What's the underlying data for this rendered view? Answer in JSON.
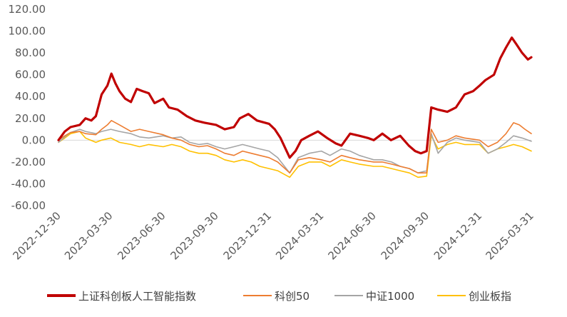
{
  "chart_data": {
    "type": "line",
    "title": "",
    "xlabel": "",
    "ylabel": "",
    "ylim": [
      -60,
      120
    ],
    "y_ticks": [
      "120.00",
      "100.00",
      "80.00",
      "60.00",
      "40.00",
      "20.00",
      "0.00",
      "-20.00",
      "-40.00",
      "-60.00"
    ],
    "x_ticks": [
      "2022-12-30",
      "2023-03-30",
      "2023-06-30",
      "2023-09-30",
      "2023-12-31",
      "2024-03-31",
      "2024-06-30",
      "2024-09-30",
      "2024-12-31",
      "2025-03-31"
    ],
    "grid": false,
    "zero_line": true,
    "legend_position": "bottom",
    "series": [
      {
        "name": "上证科创板人工智能指数",
        "color": "#C00000",
        "values": [
          [
            "2022-12-30",
            0
          ],
          [
            "2023-01-10",
            8
          ],
          [
            "2023-01-20",
            12
          ],
          [
            "2023-02-05",
            14
          ],
          [
            "2023-02-15",
            20
          ],
          [
            "2023-02-25",
            18
          ],
          [
            "2023-03-05",
            22
          ],
          [
            "2023-03-15",
            42
          ],
          [
            "2023-03-25",
            50
          ],
          [
            "2023-04-01",
            61
          ],
          [
            "2023-04-08",
            52
          ],
          [
            "2023-04-15",
            45
          ],
          [
            "2023-04-25",
            38
          ],
          [
            "2023-05-05",
            35
          ],
          [
            "2023-05-15",
            47
          ],
          [
            "2023-05-25",
            45
          ],
          [
            "2023-06-05",
            43
          ],
          [
            "2023-06-15",
            34
          ],
          [
            "2023-06-30",
            38
          ],
          [
            "2023-07-10",
            30
          ],
          [
            "2023-07-25",
            28
          ],
          [
            "2023-08-10",
            22
          ],
          [
            "2023-08-25",
            18
          ],
          [
            "2023-09-10",
            16
          ],
          [
            "2023-09-30",
            14
          ],
          [
            "2023-10-15",
            10
          ],
          [
            "2023-10-31",
            12
          ],
          [
            "2023-11-10",
            20
          ],
          [
            "2023-11-25",
            24
          ],
          [
            "2023-12-10",
            18
          ],
          [
            "2023-12-31",
            15
          ],
          [
            "2024-01-10",
            10
          ],
          [
            "2024-01-20",
            2
          ],
          [
            "2024-02-05",
            -16
          ],
          [
            "2024-02-15",
            -10
          ],
          [
            "2024-02-25",
            0
          ],
          [
            "2024-03-10",
            4
          ],
          [
            "2024-03-25",
            8
          ],
          [
            "2024-04-10",
            2
          ],
          [
            "2024-04-25",
            -3
          ],
          [
            "2024-05-05",
            -5
          ],
          [
            "2024-05-20",
            6
          ],
          [
            "2024-06-05",
            4
          ],
          [
            "2024-06-20",
            2
          ],
          [
            "2024-06-30",
            0
          ],
          [
            "2024-07-15",
            6
          ],
          [
            "2024-07-30",
            0
          ],
          [
            "2024-08-15",
            4
          ],
          [
            "2024-08-30",
            -5
          ],
          [
            "2024-09-10",
            -10
          ],
          [
            "2024-09-20",
            -12
          ],
          [
            "2024-09-30",
            -10
          ],
          [
            "2024-10-08",
            30
          ],
          [
            "2024-10-20",
            28
          ],
          [
            "2024-11-05",
            26
          ],
          [
            "2024-11-20",
            30
          ],
          [
            "2024-12-05",
            42
          ],
          [
            "2024-12-20",
            45
          ],
          [
            "2024-12-31",
            50
          ],
          [
            "2025-01-10",
            55
          ],
          [
            "2025-01-25",
            60
          ],
          [
            "2025-02-05",
            75
          ],
          [
            "2025-02-15",
            85
          ],
          [
            "2025-02-25",
            94
          ],
          [
            "2025-03-05",
            88
          ],
          [
            "2025-03-15",
            80
          ],
          [
            "2025-03-25",
            74
          ],
          [
            "2025-03-31",
            76
          ]
        ]
      },
      {
        "name": "科创50",
        "color": "#ED7D31",
        "values": [
          [
            "2022-12-30",
            0
          ],
          [
            "2023-01-10",
            4
          ],
          [
            "2023-01-20",
            7
          ],
          [
            "2023-02-05",
            8
          ],
          [
            "2023-02-15",
            6
          ],
          [
            "2023-03-05",
            5
          ],
          [
            "2023-03-15",
            10
          ],
          [
            "2023-03-25",
            14
          ],
          [
            "2023-04-01",
            18
          ],
          [
            "2023-04-15",
            14
          ],
          [
            "2023-05-05",
            8
          ],
          [
            "2023-05-20",
            10
          ],
          [
            "2023-06-05",
            8
          ],
          [
            "2023-06-30",
            5
          ],
          [
            "2023-07-15",
            2
          ],
          [
            "2023-07-31",
            0
          ],
          [
            "2023-08-15",
            -4
          ],
          [
            "2023-08-31",
            -6
          ],
          [
            "2023-09-15",
            -5
          ],
          [
            "2023-09-30",
            -8
          ],
          [
            "2023-10-15",
            -12
          ],
          [
            "2023-10-31",
            -14
          ],
          [
            "2023-11-15",
            -10
          ],
          [
            "2023-11-30",
            -12
          ],
          [
            "2023-12-15",
            -14
          ],
          [
            "2023-12-31",
            -16
          ],
          [
            "2024-01-15",
            -20
          ],
          [
            "2024-02-05",
            -30
          ],
          [
            "2024-02-20",
            -18
          ],
          [
            "2024-03-10",
            -16
          ],
          [
            "2024-03-31",
            -18
          ],
          [
            "2024-04-15",
            -20
          ],
          [
            "2024-05-05",
            -14
          ],
          [
            "2024-05-20",
            -16
          ],
          [
            "2024-06-05",
            -18
          ],
          [
            "2024-06-30",
            -20
          ],
          [
            "2024-07-15",
            -20
          ],
          [
            "2024-07-31",
            -22
          ],
          [
            "2024-08-15",
            -24
          ],
          [
            "2024-08-31",
            -26
          ],
          [
            "2024-09-15",
            -30
          ],
          [
            "2024-09-30",
            -30
          ],
          [
            "2024-10-08",
            10
          ],
          [
            "2024-10-20",
            -2
          ],
          [
            "2024-11-05",
            0
          ],
          [
            "2024-11-20",
            4
          ],
          [
            "2024-12-05",
            2
          ],
          [
            "2024-12-31",
            0
          ],
          [
            "2025-01-15",
            -6
          ],
          [
            "2025-01-31",
            -2
          ],
          [
            "2025-02-15",
            6
          ],
          [
            "2025-02-28",
            16
          ],
          [
            "2025-03-10",
            14
          ],
          [
            "2025-03-20",
            10
          ],
          [
            "2025-03-31",
            6
          ]
        ]
      },
      {
        "name": "中证1000",
        "color": "#A5A5A5",
        "values": [
          [
            "2022-12-30",
            -2
          ],
          [
            "2023-01-10",
            3
          ],
          [
            "2023-01-20",
            7
          ],
          [
            "2023-02-05",
            10
          ],
          [
            "2023-02-15",
            8
          ],
          [
            "2023-03-05",
            6
          ],
          [
            "2023-03-15",
            8
          ],
          [
            "2023-03-31",
            10
          ],
          [
            "2023-04-15",
            8
          ],
          [
            "2023-05-05",
            6
          ],
          [
            "2023-05-20",
            3
          ],
          [
            "2023-06-05",
            2
          ],
          [
            "2023-06-30",
            4
          ],
          [
            "2023-07-15",
            2
          ],
          [
            "2023-07-31",
            3
          ],
          [
            "2023-08-15",
            -2
          ],
          [
            "2023-08-31",
            -4
          ],
          [
            "2023-09-15",
            -3
          ],
          [
            "2023-09-30",
            -6
          ],
          [
            "2023-10-15",
            -8
          ],
          [
            "2023-10-31",
            -6
          ],
          [
            "2023-11-15",
            -4
          ],
          [
            "2023-11-30",
            -6
          ],
          [
            "2023-12-15",
            -8
          ],
          [
            "2023-12-31",
            -10
          ],
          [
            "2024-01-15",
            -16
          ],
          [
            "2024-02-05",
            -30
          ],
          [
            "2024-02-20",
            -16
          ],
          [
            "2024-03-10",
            -12
          ],
          [
            "2024-03-31",
            -10
          ],
          [
            "2024-04-15",
            -14
          ],
          [
            "2024-05-05",
            -8
          ],
          [
            "2024-05-20",
            -10
          ],
          [
            "2024-06-05",
            -14
          ],
          [
            "2024-06-30",
            -18
          ],
          [
            "2024-07-15",
            -18
          ],
          [
            "2024-07-31",
            -20
          ],
          [
            "2024-08-15",
            -24
          ],
          [
            "2024-08-31",
            -26
          ],
          [
            "2024-09-15",
            -30
          ],
          [
            "2024-09-30",
            -28
          ],
          [
            "2024-10-08",
            6
          ],
          [
            "2024-10-20",
            -12
          ],
          [
            "2024-11-05",
            -2
          ],
          [
            "2024-11-20",
            2
          ],
          [
            "2024-12-05",
            0
          ],
          [
            "2024-12-31",
            -2
          ],
          [
            "2025-01-15",
            -12
          ],
          [
            "2025-01-31",
            -8
          ],
          [
            "2025-02-15",
            -2
          ],
          [
            "2025-02-28",
            4
          ],
          [
            "2025-03-15",
            2
          ],
          [
            "2025-03-31",
            -1
          ]
        ]
      },
      {
        "name": "创业板指",
        "color": "#FFC000",
        "values": [
          [
            "2022-12-30",
            -2
          ],
          [
            "2023-01-10",
            2
          ],
          [
            "2023-01-20",
            6
          ],
          [
            "2023-02-05",
            8
          ],
          [
            "2023-02-15",
            2
          ],
          [
            "2023-03-05",
            -2
          ],
          [
            "2023-03-15",
            0
          ],
          [
            "2023-03-31",
            2
          ],
          [
            "2023-04-15",
            -2
          ],
          [
            "2023-05-05",
            -4
          ],
          [
            "2023-05-20",
            -6
          ],
          [
            "2023-06-05",
            -4
          ],
          [
            "2023-06-30",
            -6
          ],
          [
            "2023-07-15",
            -4
          ],
          [
            "2023-07-31",
            -6
          ],
          [
            "2023-08-15",
            -10
          ],
          [
            "2023-08-31",
            -12
          ],
          [
            "2023-09-15",
            -12
          ],
          [
            "2023-09-30",
            -14
          ],
          [
            "2023-10-15",
            -18
          ],
          [
            "2023-10-31",
            -20
          ],
          [
            "2023-11-15",
            -18
          ],
          [
            "2023-11-30",
            -20
          ],
          [
            "2023-12-15",
            -24
          ],
          [
            "2023-12-31",
            -26
          ],
          [
            "2024-01-15",
            -28
          ],
          [
            "2024-02-05",
            -34
          ],
          [
            "2024-02-20",
            -24
          ],
          [
            "2024-03-10",
            -20
          ],
          [
            "2024-03-31",
            -20
          ],
          [
            "2024-04-15",
            -24
          ],
          [
            "2024-05-05",
            -18
          ],
          [
            "2024-05-20",
            -20
          ],
          [
            "2024-06-05",
            -22
          ],
          [
            "2024-06-30",
            -24
          ],
          [
            "2024-07-15",
            -24
          ],
          [
            "2024-07-31",
            -26
          ],
          [
            "2024-08-15",
            -28
          ],
          [
            "2024-08-31",
            -30
          ],
          [
            "2024-09-15",
            -34
          ],
          [
            "2024-09-30",
            -33
          ],
          [
            "2024-10-08",
            4
          ],
          [
            "2024-10-20",
            -8
          ],
          [
            "2024-11-05",
            -4
          ],
          [
            "2024-11-20",
            -2
          ],
          [
            "2024-12-05",
            -4
          ],
          [
            "2024-12-31",
            -4
          ],
          [
            "2025-01-15",
            -12
          ],
          [
            "2025-01-31",
            -8
          ],
          [
            "2025-02-15",
            -6
          ],
          [
            "2025-02-28",
            -4
          ],
          [
            "2025-03-15",
            -6
          ],
          [
            "2025-03-31",
            -10
          ]
        ]
      }
    ]
  }
}
